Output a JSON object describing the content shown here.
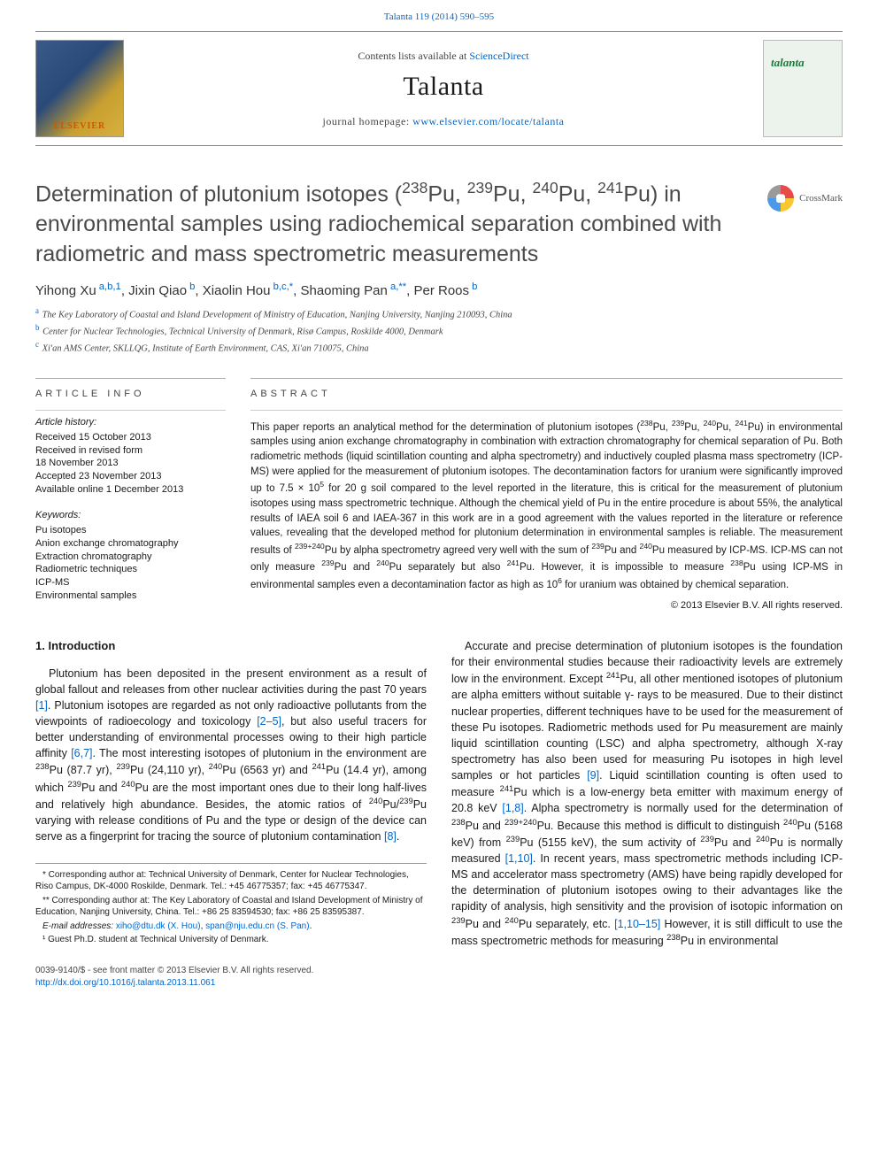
{
  "colors": {
    "link": "#0066cc",
    "text": "#1a1a1a",
    "muted": "#4a4a4a",
    "rule": "#999999"
  },
  "top_citation_link": "Talanta 119 (2014) 590–595",
  "header": {
    "contents_prefix": "Contents lists available at ",
    "contents_link": "ScienceDirect",
    "journal": "Talanta",
    "homepage_prefix": "journal homepage: ",
    "homepage_url": "www.elsevier.com/locate/talanta",
    "publisher": "ELSEVIER",
    "crossmark": "CrossMark"
  },
  "title_html": "Determination of plutonium isotopes (<sup>238</sup>Pu, <sup>239</sup>Pu, <sup>240</sup>Pu, <sup>241</sup>Pu) in environmental samples using radiochemical separation combined with radiometric and mass spectrometric measurements",
  "authors": [
    {
      "name": "Yihong Xu",
      "aff": "a,b,1"
    },
    {
      "name": "Jixin Qiao",
      "aff": "b"
    },
    {
      "name": "Xiaolin Hou",
      "aff": "b,c,*"
    },
    {
      "name": "Shaoming Pan",
      "aff": "a,**"
    },
    {
      "name": "Per Roos",
      "aff": "b"
    }
  ],
  "affiliations": [
    {
      "key": "a",
      "text": "The Key Laboratory of Coastal and Island Development of Ministry of Education, Nanjing University, Nanjing 210093, China"
    },
    {
      "key": "b",
      "text": "Center for Nuclear Technologies, Technical University of Denmark, Risø Campus, Roskilde 4000, Denmark"
    },
    {
      "key": "c",
      "text": "Xi'an AMS Center, SKLLQG, Institute of Earth Environment, CAS, Xi'an 710075, China"
    }
  ],
  "article_info": {
    "heading": "ARTICLE INFO",
    "history_label": "Article history:",
    "history": [
      "Received 15 October 2013",
      "Received in revised form",
      "18 November 2013",
      "Accepted 23 November 2013",
      "Available online 1 December 2013"
    ],
    "keywords_label": "Keywords:",
    "keywords": [
      "Pu isotopes",
      "Anion exchange chromatography",
      "Extraction chromatography",
      "Radiometric techniques",
      "ICP-MS",
      "Environmental samples"
    ]
  },
  "abstract": {
    "heading": "ABSTRACT",
    "text_html": "This paper reports an analytical method for the determination of plutonium isotopes (<sup>238</sup>Pu, <sup>239</sup>Pu, <sup>240</sup>Pu, <sup>241</sup>Pu) in environmental samples using anion exchange chromatography in combination with extraction chromatography for chemical separation of Pu. Both radiometric methods (liquid scintillation counting and alpha spectrometry) and inductively coupled plasma mass spectrometry (ICP-MS) were applied for the measurement of plutonium isotopes. The decontamination factors for uranium were significantly improved up to 7.5 × 10<sup>5</sup> for 20 g soil compared to the level reported in the literature, this is critical for the measurement of plutonium isotopes using mass spectrometric technique. Although the chemical yield of Pu in the entire procedure is about 55%, the analytical results of IAEA soil 6 and IAEA-367 in this work are in a good agreement with the values reported in the literature or reference values, revealing that the developed method for plutonium determination in environmental samples is reliable. The measurement results of <sup>239+240</sup>Pu by alpha spectrometry agreed very well with the sum of <sup>239</sup>Pu and <sup>240</sup>Pu measured by ICP-MS. ICP-MS can not only measure <sup>239</sup>Pu and <sup>240</sup>Pu separately but also <sup>241</sup>Pu. However, it is impossible to measure <sup>238</sup>Pu using ICP-MS in environmental samples even a decontamination factor as high as 10<sup>6</sup> for uranium was obtained by chemical separation.",
    "copyright": "© 2013 Elsevier B.V. All rights reserved."
  },
  "intro": {
    "heading": "1.  Introduction",
    "para1_html": "Plutonium has been deposited in the present environment as a result of global fallout and releases from other nuclear activities during the past 70 years <a class='ref-link' href='#'>[1]</a>. Plutonium isotopes are regarded as not only radioactive pollutants from the viewpoints of radioecology and toxicology <a class='ref-link' href='#'>[2–5]</a>, but also useful tracers for better understanding of environmental processes owing to their high particle affinity <a class='ref-link' href='#'>[6,7]</a>. The most interesting isotopes of plutonium in the environment are <sup>238</sup>Pu (87.7 yr), <sup>239</sup>Pu (24,110 yr), <sup>240</sup>Pu (6563 yr) and <sup>241</sup>Pu (14.4 yr), among which <sup>239</sup>Pu and <sup>240</sup>Pu are the most important ones due to their long half-lives and relatively high abundance. Besides, the atomic ratios of <sup>240</sup>Pu/<sup>239</sup>Pu varying with release conditions of Pu and the type or design of the device can serve as a fingerprint for tracing the source of plutonium contamination <a class='ref-link' href='#'>[8]</a>.",
    "para2_html": "Accurate and precise determination of plutonium isotopes is the foundation for their environmental studies because their radioactivity levels are extremely low in the environment. Except <sup>241</sup>Pu, all other mentioned isotopes of plutonium are alpha emitters without suitable γ- rays to be measured. Due to their distinct nuclear properties, different techniques have to be used for the measurement of these Pu isotopes. Radiometric methods used for Pu measurement are mainly liquid scintillation counting (LSC) and alpha spectrometry, although X-ray spectrometry has also been used for measuring Pu isotopes in high level samples or hot particles <a class='ref-link' href='#'>[9]</a>. Liquid scintillation counting is often used to measure <sup>241</sup>Pu which is a low-energy beta emitter with maximum energy of 20.8 keV <a class='ref-link' href='#'>[1,8]</a>. Alpha spectrometry is normally used for the determination of <sup>238</sup>Pu and <sup>239+240</sup>Pu. Because this method is difficult to distinguish <sup>240</sup>Pu (5168 keV) from <sup>239</sup>Pu (5155 keV), the sum activity of <sup>239</sup>Pu and <sup>240</sup>Pu is normally measured <a class='ref-link' href='#'>[1,10]</a>. In recent years, mass spectrometric methods including ICP-MS and accelerator mass spectrometry (AMS) have being rapidly developed for the determination of plutonium isotopes owing to their advantages like the rapidity of analysis, high sensitivity and the provision of isotopic information on <sup>239</sup>Pu and <sup>240</sup>Pu separately, etc. <a class='ref-link' href='#'>[1,10–15]</a> However, it is still difficult to use the mass spectrometric methods for measuring <sup>238</sup>Pu in environmental"
  },
  "footnotes": {
    "corr1": "* Corresponding author at: Technical University of Denmark, Center for Nuclear Technologies, Riso Campus, DK-4000 Roskilde, Denmark. Tel.: +45 46775357; fax: +45 46775347.",
    "corr2": "** Corresponding author at: The Key Laboratory of Coastal and Island Development of Ministry of Education, Nanjing University, China. Tel.: +86 25 83594530; fax: +86 25 83595387.",
    "email_label": "E-mail addresses: ",
    "email1": "xiho@dtu.dk (X. Hou)",
    "email2": "span@nju.edu.cn (S. Pan)",
    "note1": "¹ Guest Ph.D. student at Technical University of Denmark."
  },
  "footer": {
    "line1": "0039-9140/$ - see front matter © 2013 Elsevier B.V. All rights reserved.",
    "doi": "http://dx.doi.org/10.1016/j.talanta.2013.11.061"
  }
}
